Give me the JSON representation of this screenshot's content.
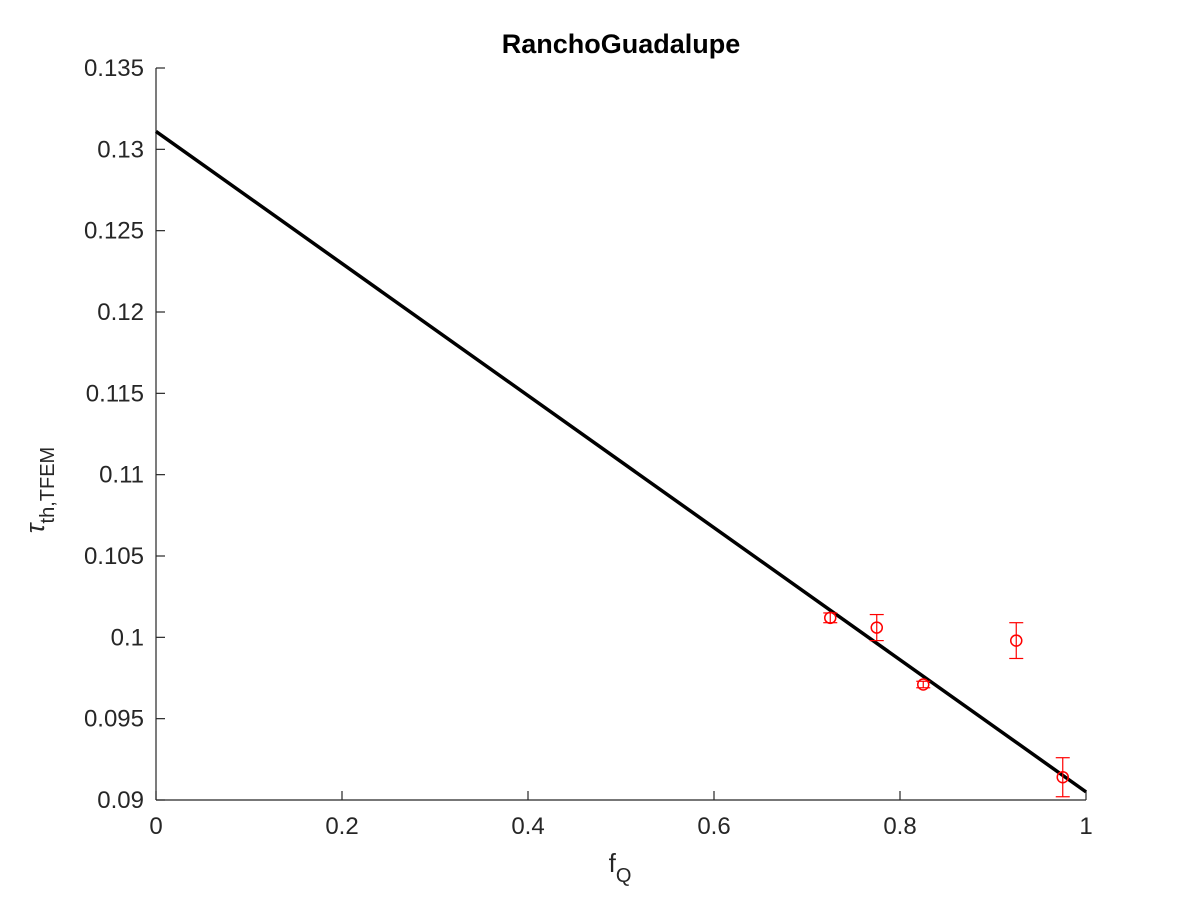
{
  "chart_data": {
    "type": "scatter",
    "title": "RanchoGuadalupe",
    "xlabel": {
      "main": "f",
      "sub": "Q"
    },
    "ylabel": {
      "main": "τ",
      "sub": "th,TFEM"
    },
    "xlim": [
      0,
      1
    ],
    "ylim": [
      0.09,
      0.135
    ],
    "x_ticks": [
      0,
      0.2,
      0.4,
      0.6,
      0.8,
      1
    ],
    "x_tick_labels": [
      "0",
      "0.2",
      "0.4",
      "0.6",
      "0.8",
      "1"
    ],
    "y_ticks": [
      0.09,
      0.095,
      0.1,
      0.105,
      0.11,
      0.115,
      0.12,
      0.125,
      0.13,
      0.135
    ],
    "y_tick_labels": [
      "0.09",
      "0.095",
      "0.1",
      "0.105",
      "0.11",
      "0.115",
      "0.12",
      "0.125",
      "0.13",
      "0.135"
    ],
    "grid": false,
    "box": false,
    "series": [
      {
        "kind": "line",
        "color": "#000000",
        "x": [
          0,
          1
        ],
        "y": [
          0.1311,
          0.0905
        ]
      },
      {
        "kind": "scatter-errorbar",
        "marker": "circle-open",
        "color": "#ff0000",
        "x": [
          0.725,
          0.775,
          0.825,
          0.925,
          0.975
        ],
        "y": [
          0.1012,
          0.1006,
          0.0971,
          0.0998,
          0.0914
        ],
        "err": [
          0.0003,
          0.0008,
          0.0002,
          0.0011,
          0.0012
        ]
      }
    ]
  }
}
